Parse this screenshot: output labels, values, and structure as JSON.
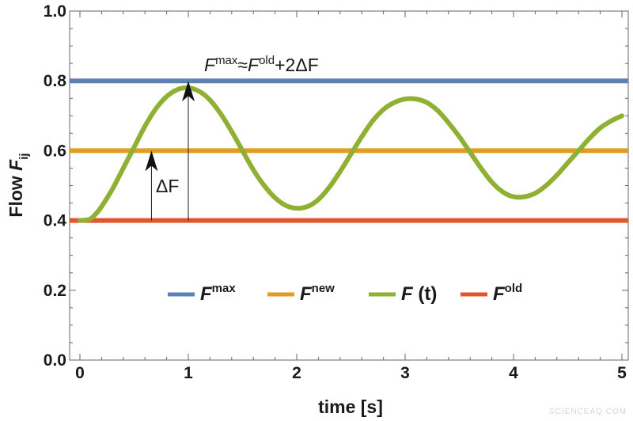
{
  "chart_data": {
    "type": "line",
    "xlabel": "time [s]",
    "ylabel": {
      "prefix": "Flow ",
      "var": "F",
      "sub": "ij"
    },
    "xlim": [
      0,
      5
    ],
    "ylim": [
      0,
      1.0
    ],
    "x_ticks": [
      0,
      1,
      2,
      3,
      4,
      5
    ],
    "y_ticks": [
      0.0,
      0.2,
      0.4,
      0.6,
      0.8,
      1.0
    ],
    "x_tick_labels": [
      "0",
      "1",
      "2",
      "3",
      "4",
      "5"
    ],
    "y_tick_labels": [
      "0.0",
      "0.2",
      "0.4",
      "0.6",
      "0.8",
      "1.0"
    ],
    "grid": false,
    "legend_position": "center",
    "series": [
      {
        "key": "max",
        "label_var": "F",
        "label_sup": "max",
        "color": "#5e81b5",
        "type": "constant",
        "value": 0.8
      },
      {
        "key": "new",
        "label_var": "F",
        "label_sup": "new",
        "color": "#e19c24",
        "type": "constant",
        "value": 0.6
      },
      {
        "key": "ft",
        "label_var": "F",
        "label_rest": " (t)",
        "color": "#8fb032",
        "type": "curve",
        "points": [
          [
            0.0,
            0.4
          ],
          [
            0.05,
            0.401
          ],
          [
            0.1,
            0.405
          ],
          [
            0.15,
            0.42
          ],
          [
            0.2,
            0.44
          ],
          [
            0.3,
            0.49
          ],
          [
            0.4,
            0.55
          ],
          [
            0.5,
            0.61
          ],
          [
            0.6,
            0.67
          ],
          [
            0.7,
            0.72
          ],
          [
            0.8,
            0.755
          ],
          [
            0.9,
            0.775
          ],
          [
            1.0,
            0.78
          ],
          [
            1.1,
            0.77
          ],
          [
            1.2,
            0.745
          ],
          [
            1.3,
            0.705
          ],
          [
            1.4,
            0.655
          ],
          [
            1.5,
            0.6
          ],
          [
            1.6,
            0.545
          ],
          [
            1.7,
            0.5
          ],
          [
            1.8,
            0.465
          ],
          [
            1.9,
            0.443
          ],
          [
            2.0,
            0.435
          ],
          [
            2.1,
            0.44
          ],
          [
            2.2,
            0.46
          ],
          [
            2.3,
            0.495
          ],
          [
            2.4,
            0.54
          ],
          [
            2.5,
            0.59
          ],
          [
            2.6,
            0.64
          ],
          [
            2.7,
            0.685
          ],
          [
            2.8,
            0.718
          ],
          [
            2.9,
            0.738
          ],
          [
            3.0,
            0.748
          ],
          [
            3.1,
            0.748
          ],
          [
            3.2,
            0.738
          ],
          [
            3.3,
            0.715
          ],
          [
            3.4,
            0.68
          ],
          [
            3.5,
            0.64
          ],
          [
            3.6,
            0.595
          ],
          [
            3.7,
            0.55
          ],
          [
            3.8,
            0.51
          ],
          [
            3.9,
            0.482
          ],
          [
            4.0,
            0.468
          ],
          [
            4.1,
            0.468
          ],
          [
            4.2,
            0.478
          ],
          [
            4.3,
            0.5
          ],
          [
            4.4,
            0.53
          ],
          [
            4.5,
            0.565
          ],
          [
            4.6,
            0.6
          ],
          [
            4.7,
            0.635
          ],
          [
            4.8,
            0.665
          ],
          [
            4.9,
            0.685
          ],
          [
            5.0,
            0.7
          ]
        ]
      },
      {
        "key": "old",
        "label_var": "F",
        "label_sup": "old",
        "color": "#e0572d",
        "type": "constant",
        "value": 0.4
      }
    ],
    "annotations": {
      "formula": {
        "v1": "F",
        "s1": "max",
        "op": "≈",
        "v2": "F",
        "s2": "old",
        "tail": "+2ΔF"
      },
      "delta_label": "ΔF",
      "arrow_small": {
        "x": 0.66,
        "y_from": 0.4,
        "y_to": 0.6
      },
      "arrow_large": {
        "x": 1.0,
        "y_from": 0.4,
        "y_to": 0.8
      }
    }
  },
  "watermark": "SCIENCEAQ.COM"
}
